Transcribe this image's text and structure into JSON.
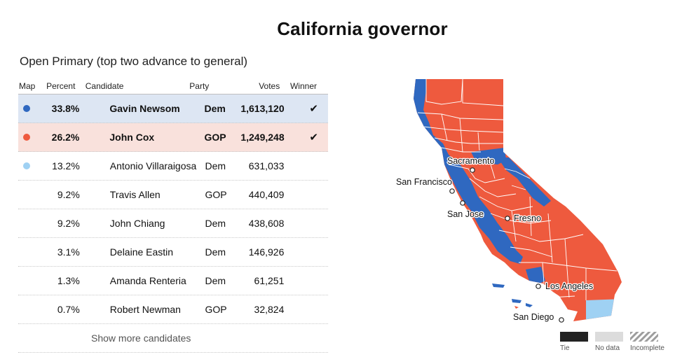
{
  "title": "California governor",
  "subtitle": "Open Primary (top two advance to general)",
  "table": {
    "headers": {
      "map": "Map",
      "percent": "Percent",
      "candidate": "Candidate",
      "party": "Party",
      "votes": "Votes",
      "winner": "Winner"
    },
    "rows": [
      {
        "percent": "33.8%",
        "candidate": "Gavin Newsom",
        "party": "Dem",
        "votes": "1,613,120",
        "winner": "✔",
        "color": "#2f68c0"
      },
      {
        "percent": "26.2%",
        "candidate": "John Cox",
        "party": "GOP",
        "votes": "1,249,248",
        "winner": "✔",
        "color": "#ee5a3e"
      },
      {
        "percent": "13.2%",
        "candidate": "Antonio Villaraigosa",
        "party": "Dem",
        "votes": "631,033",
        "winner": "",
        "color": "#9fd1f3"
      },
      {
        "percent": "9.2%",
        "candidate": "Travis Allen",
        "party": "GOP",
        "votes": "440,409",
        "winner": ""
      },
      {
        "percent": "9.2%",
        "candidate": "John Chiang",
        "party": "Dem",
        "votes": "438,608",
        "winner": ""
      },
      {
        "percent": "3.1%",
        "candidate": "Delaine Eastin",
        "party": "Dem",
        "votes": "146,926",
        "winner": ""
      },
      {
        "percent": "1.3%",
        "candidate": "Amanda Renteria",
        "party": "Dem",
        "votes": "61,251",
        "winner": ""
      },
      {
        "percent": "0.7%",
        "candidate": "Robert Newman",
        "party": "GOP",
        "votes": "32,824",
        "winner": ""
      }
    ],
    "show_more": "Show more candidates"
  },
  "map": {
    "cities": [
      "Sacramento",
      "San Francisco",
      "San Jose",
      "Fresno",
      "Los Angeles",
      "San Diego"
    ],
    "colors": {
      "dem_newsom": "#2f68c0",
      "gop_cox": "#ee5a3e",
      "villaraigosa": "#9fd1f3",
      "border": "#ffffff"
    }
  },
  "legend": {
    "tie": "Tie",
    "no_data": "No data",
    "incomplete": "Incomplete"
  }
}
